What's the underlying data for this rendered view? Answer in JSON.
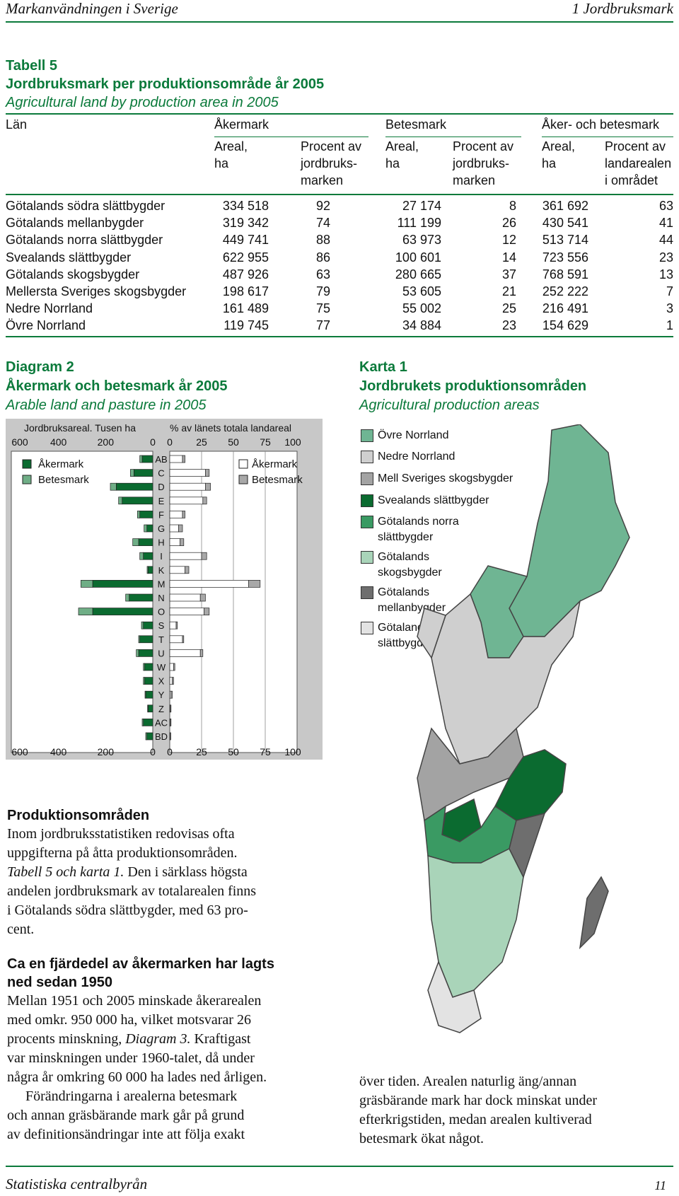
{
  "header": {
    "left": "Markanvändningen i Sverige",
    "right": "1 Jordbruksmark"
  },
  "footer": {
    "left": "Statistiska centralbyrån",
    "right": "11"
  },
  "table": {
    "label": "Tabell 5",
    "title": "Jordbruksmark per produktionsområde år 2005",
    "subtitle": "Agricultural land by production area in 2005",
    "col_lan": "Län",
    "group_aker": "Åkermark",
    "group_bete": "Betesmark",
    "group_both": "Åker- och betesmark",
    "sub": {
      "areal1": "Areal,",
      "ha1": "ha",
      "pct1a": "Procent av",
      "pct1b": "jordbruks-",
      "pct1c": "marken",
      "areal2": "Areal,",
      "ha2": "ha",
      "pct2a": "Procent av",
      "pct2b": "jordbruks-",
      "pct2c": "marken",
      "areal3": "Areal,",
      "ha3": "ha",
      "pct3a": "Procent av",
      "pct3b": "landarealen",
      "pct3c": "i området"
    },
    "rows": [
      {
        "name": "Götalands södra slättbygder",
        "a_ha": "334 518",
        "a_pct": "92",
        "b_ha": "27 174",
        "b_pct": "8",
        "t_ha": "361 692",
        "t_pct": "63"
      },
      {
        "name": "Götalands mellanbygder",
        "a_ha": "319 342",
        "a_pct": "74",
        "b_ha": "111 199",
        "b_pct": "26",
        "t_ha": "430 541",
        "t_pct": "41"
      },
      {
        "name": "Götalands norra slättbygder",
        "a_ha": "449 741",
        "a_pct": "88",
        "b_ha": "63 973",
        "b_pct": "12",
        "t_ha": "513 714",
        "t_pct": "44"
      },
      {
        "name": "Svealands slättbygder",
        "a_ha": "622 955",
        "a_pct": "86",
        "b_ha": "100 601",
        "b_pct": "14",
        "t_ha": "723 556",
        "t_pct": "23"
      },
      {
        "name": "Götalands skogsbygder",
        "a_ha": "487 926",
        "a_pct": "63",
        "b_ha": "280 665",
        "b_pct": "37",
        "t_ha": "768 591",
        "t_pct": "13"
      },
      {
        "name": "Mellersta Sveriges skogsbygder",
        "a_ha": "198 617",
        "a_pct": "79",
        "b_ha": "53 605",
        "b_pct": "21",
        "t_ha": "252 222",
        "t_pct": "7"
      },
      {
        "name": "Nedre Norrland",
        "a_ha": "161 489",
        "a_pct": "75",
        "b_ha": "55 002",
        "b_pct": "25",
        "t_ha": "216 491",
        "t_pct": "3"
      },
      {
        "name": "Övre Norrland",
        "a_ha": "119 745",
        "a_pct": "77",
        "b_ha": "34 884",
        "b_pct": "23",
        "t_ha": "154 629",
        "t_pct": "1"
      }
    ]
  },
  "diagram": {
    "label": "Diagram 2",
    "title": "Åkermark och betesmark år 2005",
    "subtitle": "Arable land and pasture in 2005"
  },
  "chart_data": {
    "type": "bar",
    "left_axis_title": "Jordbruksareal. Tusen ha",
    "right_axis_title": "% av länets totala landareal",
    "left_ticks": [
      "600",
      "400",
      "200",
      "0"
    ],
    "right_ticks": [
      "0",
      "25",
      "50",
      "75",
      "100"
    ],
    "left_xlim": [
      0,
      600
    ],
    "right_xlim": [
      0,
      100
    ],
    "legend_left": [
      "Åkermark",
      "Betesmark"
    ],
    "legend_right": [
      "Åkermark",
      "Betesmark"
    ],
    "colors": {
      "akermark_left": "#0b6b30",
      "betesmark_left": "#6fae86",
      "akermark_right": "#ffffff",
      "betesmark_right": "#a8a8a8"
    },
    "categories": [
      "AB",
      "C",
      "D",
      "E",
      "F",
      "G",
      "H",
      "I",
      "K",
      "M",
      "N",
      "O",
      "S",
      "T",
      "U",
      "W",
      "X",
      "Y",
      "Z",
      "AC",
      "BD"
    ],
    "series": [
      {
        "name": "Åkermark",
        "side": "left",
        "values": [
          45,
          80,
          155,
          130,
          55,
          25,
          60,
          40,
          20,
          255,
          100,
          255,
          40,
          55,
          60,
          35,
          35,
          30,
          20,
          40,
          25
        ]
      },
      {
        "name": "Betesmark",
        "side": "left",
        "values": [
          10,
          15,
          25,
          15,
          10,
          12,
          25,
          15,
          4,
          50,
          15,
          60,
          8,
          5,
          10,
          5,
          5,
          3,
          2,
          5,
          5
        ]
      },
      {
        "name": "Åkermark",
        "side": "right",
        "values": [
          10,
          28,
          28,
          26,
          10,
          7,
          8,
          25,
          12,
          62,
          24,
          27,
          5,
          10,
          24,
          3,
          2,
          1,
          0.5,
          0.5,
          0.5
        ]
      },
      {
        "name": "Betesmark",
        "side": "right",
        "values": [
          2,
          3,
          4,
          3,
          2,
          3,
          3,
          4,
          3,
          9,
          4,
          4,
          1,
          1,
          2,
          1,
          1,
          1,
          0.5,
          0.5,
          0.3
        ]
      }
    ]
  },
  "map": {
    "label": "Karta 1",
    "title": "Jordbrukets produktionsområden",
    "subtitle": "Agricultural production areas",
    "legend": [
      {
        "label1": "Övre Norrland",
        "label2": "",
        "color": "#6fb593"
      },
      {
        "label1": "Nedre Norrland",
        "label2": "",
        "color": "#cfcfcf"
      },
      {
        "label1": "Mell Sveriges skogsbygder",
        "label2": "",
        "color": "#a3a3a3"
      },
      {
        "label1": "Svealands slättbygder",
        "label2": "",
        "color": "#0b6b30"
      },
      {
        "label1": "Götalands norra",
        "label2": "slättbygder",
        "color": "#3a9a63"
      },
      {
        "label1": "Götalands",
        "label2": "skogsbygder",
        "color": "#a9d4b9"
      },
      {
        "label1": "Götalands",
        "label2": "mellanbygder",
        "color": "#6e6e6e"
      },
      {
        "label1": "Götalands södra",
        "label2": "slättbygder",
        "color": "#e3e3e3"
      }
    ]
  },
  "text": {
    "h1": "Produktionsområden",
    "p1": [
      "Inom jordbruksstatistiken redovisas ofta",
      "uppgifterna på åtta produktionsområden.",
      "Tabell 5 och karta 1.",
      " Den i särklass högsta",
      "andelen jordbruksmark av totalarealen finns",
      "i Götalands södra slättbygder, med 63 pro-",
      "cent."
    ],
    "h2a": "Ca en fjärdedel av åkermarken har lagts",
    "h2b": "ned sedan 1950",
    "p2": [
      "Mellan 1951 och 2005 minskade åkerarealen",
      "med omkr. 950 000 ha, vilket motsvarar 26",
      "procents minskning, ",
      "Diagram 3.",
      " Kraftigast",
      "var minskningen under 1960-talet, då under",
      "några år omkring 60 000 ha lades ned årligen.",
      "Förändringarna i arealerna betesmark",
      "och annan gräsbärande mark går på grund",
      "av definitionsändringar inte att följa exakt"
    ],
    "p3": [
      "över tiden. Arealen naturlig äng/annan",
      "gräsbärande mark har dock minskat under",
      "efterkrigstiden, medan arealen kultiverad",
      "betesmark ökat något."
    ]
  }
}
